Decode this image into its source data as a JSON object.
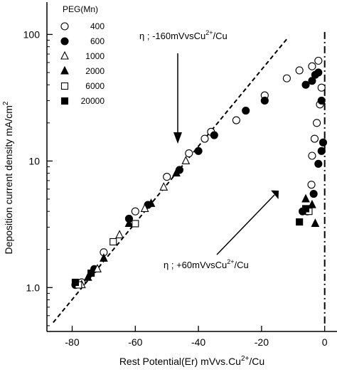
{
  "chart_data": {
    "type": "scatter",
    "xlabel": "Rest Potential(Er) mVvs.Cu",
    "xlabel_sup": "2+",
    "xlabel_tail": "/Cu",
    "ylabel": "Deposition current density mA/cm",
    "ylabel_sup": "2",
    "xlim": [
      -88,
      3
    ],
    "ylim": [
      0.45,
      180
    ],
    "yscale": "log",
    "grid": false,
    "legend_title": "PEG(Mn)",
    "legend_position": "top-left",
    "x_ticks": [
      {
        "value": -80,
        "label": "-80"
      },
      {
        "value": -60,
        "label": "-60"
      },
      {
        "value": -40,
        "label": "-40"
      },
      {
        "value": -20,
        "label": "-20"
      },
      {
        "value": 0,
        "label": "0"
      }
    ],
    "y_ticks": [
      {
        "value": 1,
        "label": "1.0"
      },
      {
        "value": 10,
        "label": "10"
      },
      {
        "value": 100,
        "label": "100"
      }
    ],
    "series": [
      {
        "name": "400",
        "marker": "circle-open",
        "x": [
          -77,
          -70,
          -60,
          -50,
          -43,
          -38,
          -36,
          -28,
          -19,
          -12,
          -8,
          -4,
          -2,
          -1,
          -1.5,
          -2.5,
          -3.2,
          -4,
          -4.2
        ],
        "y": [
          1.1,
          1.9,
          4.0,
          7.5,
          11.5,
          15.0,
          17.0,
          21.0,
          33.0,
          45.0,
          52.0,
          56.0,
          62.0,
          38.0,
          28.0,
          20.0,
          15.0,
          11.0,
          6.5
        ]
      },
      {
        "name": "600",
        "marker": "circle-filled",
        "x": [
          -79,
          -73,
          -62,
          -56,
          -46,
          -40,
          -35,
          -25,
          -19,
          -6,
          -4,
          -3,
          -2,
          -1,
          -0.5,
          -1,
          -2,
          -3.5,
          -5.5,
          -7
        ],
        "y": [
          1.05,
          1.4,
          3.5,
          4.5,
          8.5,
          12.0,
          16.0,
          25.0,
          30.0,
          40.0,
          43.0,
          48.0,
          50.0,
          30.0,
          14.0,
          12.0,
          9.5,
          5.5,
          4.0,
          4.0
        ]
      },
      {
        "name": "1000",
        "marker": "triangle-open",
        "x": [
          -77,
          -72,
          -65,
          -57,
          -51,
          -44
        ],
        "y": [
          1.05,
          1.4,
          2.6,
          4.2,
          6.2,
          10.0
        ]
      },
      {
        "name": "2000",
        "marker": "triangle-filled",
        "x": [
          -75,
          -70,
          -62,
          -55,
          -47,
          -6,
          -4,
          -3
        ],
        "y": [
          1.2,
          1.7,
          3.2,
          4.6,
          8.0,
          5.0,
          4.5,
          3.2
        ]
      },
      {
        "name": "6000",
        "marker": "square-open",
        "x": [
          -78,
          -67,
          -60,
          -5
        ],
        "y": [
          1.05,
          2.3,
          3.2,
          4.0
        ]
      },
      {
        "name": "20000",
        "marker": "square-filled",
        "x": [
          -79,
          -74,
          -8,
          -6
        ],
        "y": [
          1.1,
          1.3,
          3.3,
          4.2
        ]
      }
    ],
    "lines": [
      {
        "style": "dashed",
        "x": [
          -86,
          -12
        ],
        "y": [
          0.53,
          92
        ]
      },
      {
        "style": "dash-dot",
        "x": [
          0,
          0
        ],
        "y": [
          0.52,
          110
        ]
      }
    ],
    "annotations": [
      {
        "label": "η ; -160mVvsCu",
        "sup": "2+",
        "tail": "/Cu"
      },
      {
        "label": "η ;   +60mVvsCu",
        "sup": "2+",
        "tail": "/Cu"
      }
    ]
  }
}
